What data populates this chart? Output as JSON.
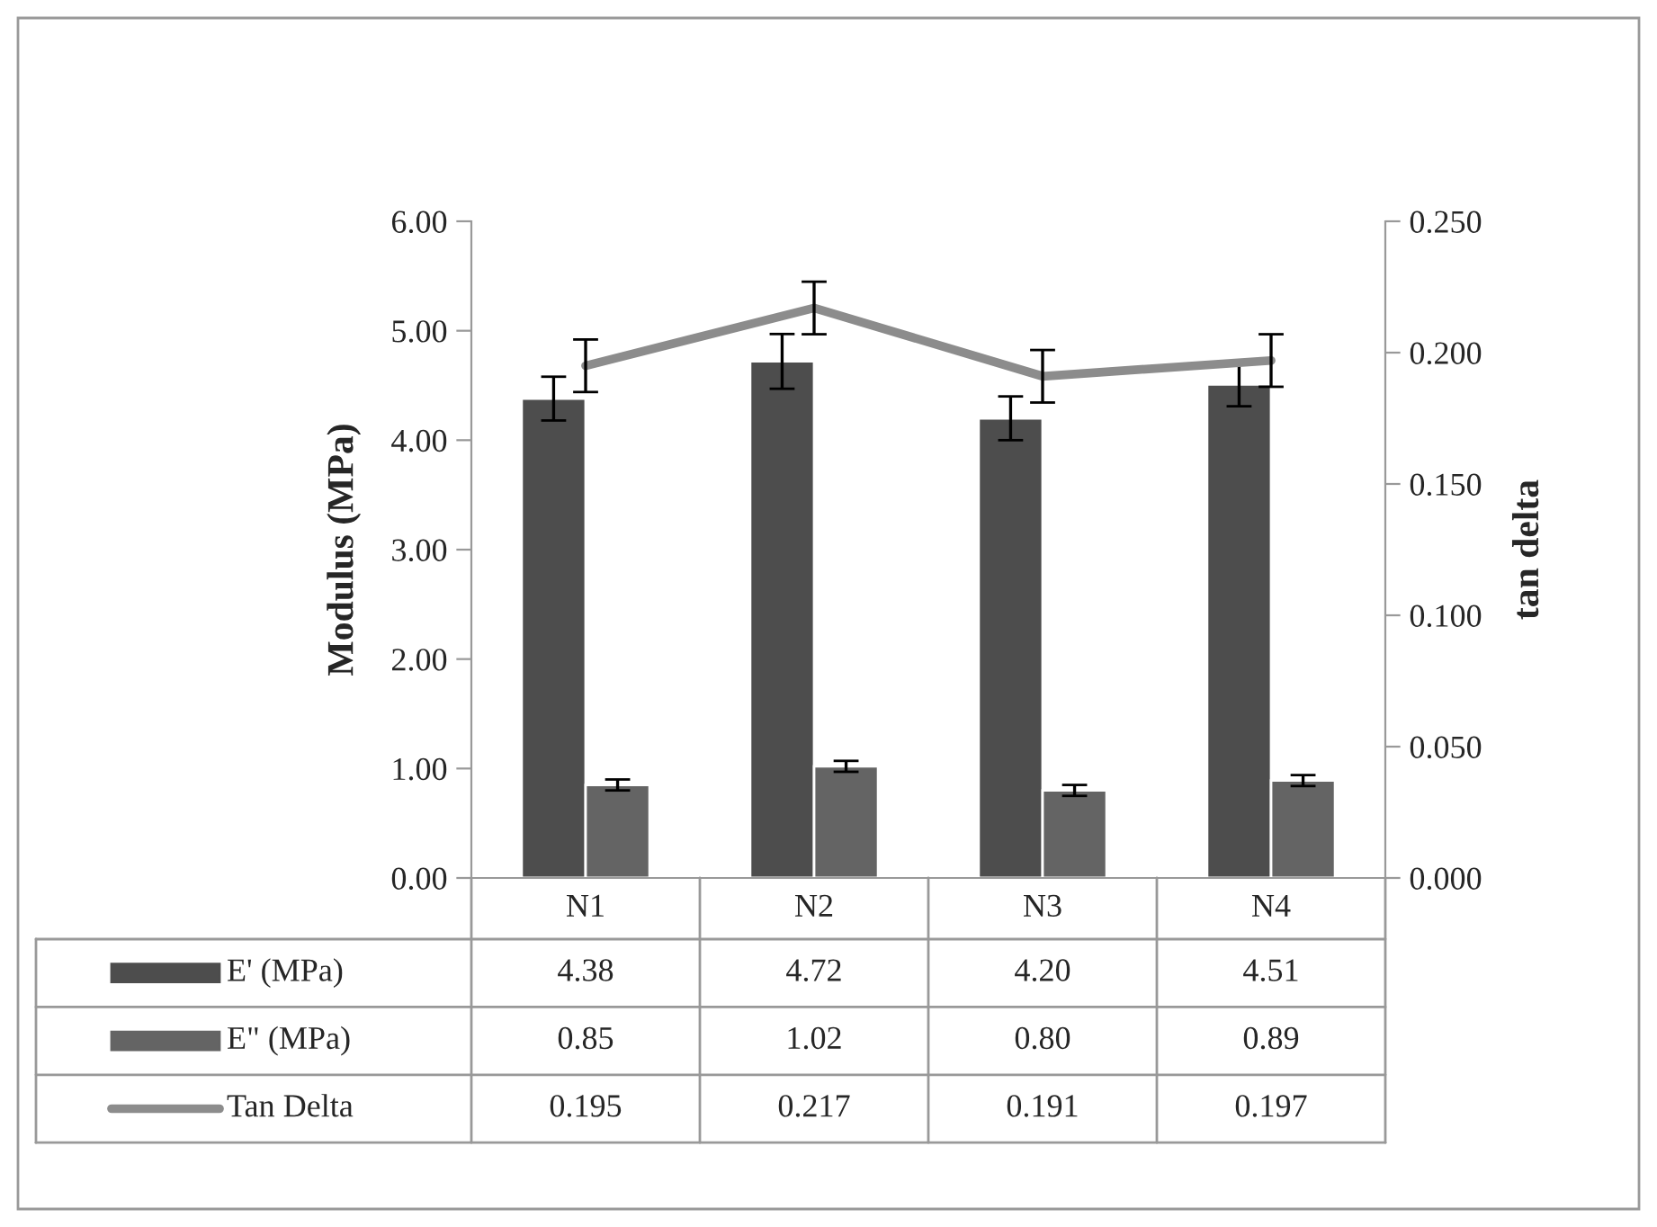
{
  "chart_data": {
    "type": "bar",
    "categories": [
      "N1",
      "N2",
      "N3",
      "N4"
    ],
    "ylabel": "Modulus (MPa)",
    "y2label": "tan delta",
    "ylim": [
      0,
      6
    ],
    "yticks": [
      {
        "value": 0,
        "label": "0.00"
      },
      {
        "value": 1,
        "label": "1.00"
      },
      {
        "value": 2,
        "label": "2.00"
      },
      {
        "value": 3,
        "label": "3.00"
      },
      {
        "value": 4,
        "label": "4.00"
      },
      {
        "value": 5,
        "label": "5.00"
      },
      {
        "value": 6,
        "label": "6.00"
      }
    ],
    "y2lim": [
      0,
      0.25
    ],
    "y2ticks": [
      {
        "value": 0,
        "label": "0.000"
      },
      {
        "value": 0.05,
        "label": "0.050"
      },
      {
        "value": 0.1,
        "label": "0.100"
      },
      {
        "value": 0.15,
        "label": "0.150"
      },
      {
        "value": 0.2,
        "label": "0.200"
      },
      {
        "value": 0.25,
        "label": "0.250"
      }
    ],
    "series": [
      {
        "name": "E' (MPa)",
        "color": "#4d4d4d",
        "values": [
          4.38,
          4.72,
          4.2,
          4.51
        ],
        "errors": [
          0.2,
          0.25,
          0.2,
          0.2
        ],
        "value_labels": [
          "4.38",
          "4.72",
          "4.20",
          "4.51"
        ]
      },
      {
        "name": "E\" (MPa)",
        "color": "#646464",
        "values": [
          0.85,
          1.02,
          0.8,
          0.89
        ],
        "errors": [
          0.05,
          0.05,
          0.05,
          0.05
        ],
        "value_labels": [
          "0.85",
          "1.02",
          "0.80",
          "0.89"
        ]
      },
      {
        "name": "Tan Delta",
        "type": "line",
        "axis": "y2",
        "color": "#8c8c8c",
        "values": [
          0.195,
          0.217,
          0.191,
          0.197
        ],
        "errors": [
          0.01,
          0.01,
          0.01,
          0.01
        ],
        "value_labels": [
          "0.195",
          "0.217",
          "0.191",
          "0.197"
        ]
      }
    ],
    "grid": false,
    "legend": "bottom"
  }
}
